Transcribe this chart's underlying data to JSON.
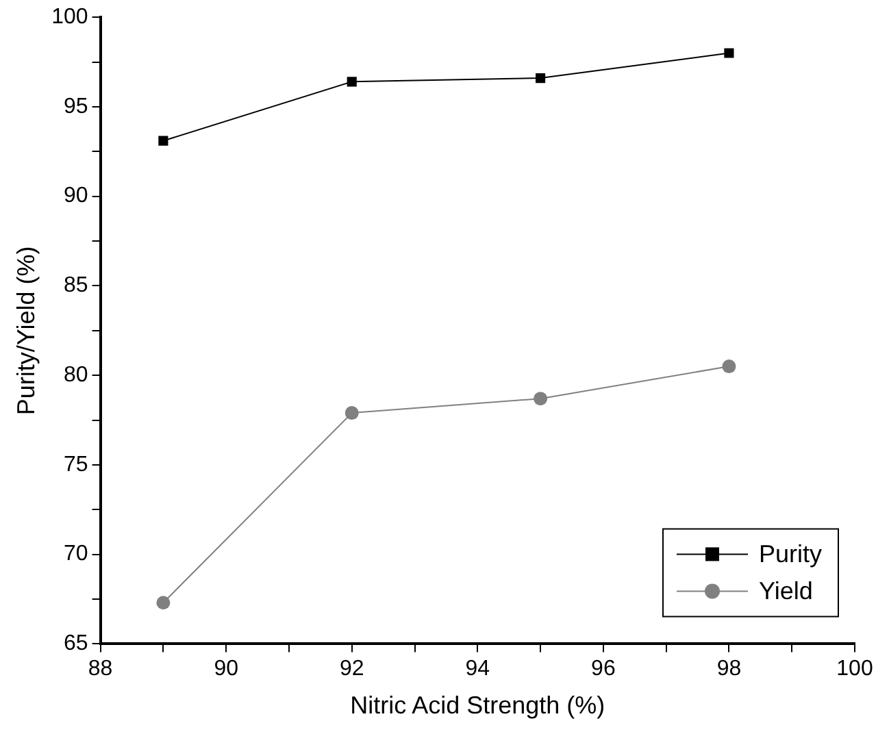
{
  "chart_data": {
    "type": "line",
    "xlabel": "Nitric Acid Strength (%)",
    "ylabel": "Purity/Yield (%)",
    "x": [
      89,
      92,
      95,
      98
    ],
    "series": [
      {
        "name": "Purity",
        "color": "#000000",
        "marker": "square",
        "values": [
          93.1,
          96.4,
          96.6,
          98.0
        ]
      },
      {
        "name": "Yield",
        "color": "#808080",
        "marker": "circle",
        "values": [
          67.3,
          77.9,
          78.7,
          80.5
        ]
      }
    ],
    "xlim": [
      88,
      100
    ],
    "xticks": [
      88,
      {
        "value": 89,
        "label": null
      },
      90,
      {
        "value": 91,
        "label": null
      },
      92,
      {
        "value": 93,
        "label": null
      },
      94,
      {
        "value": 95,
        "label": null
      },
      96,
      {
        "value": 97,
        "label": null
      },
      98,
      {
        "value": 99,
        "label": null
      },
      100
    ],
    "ylim": [
      65,
      100
    ],
    "yticks": [
      65,
      {
        "value": 67.5,
        "label": null
      },
      70,
      {
        "value": 72.5,
        "label": null
      },
      75,
      {
        "value": 77.5,
        "label": null
      },
      80,
      {
        "value": 82.5,
        "label": null
      },
      85,
      {
        "value": 87.5,
        "label": null
      },
      90,
      {
        "value": 92.5,
        "label": null
      },
      95,
      {
        "value": 97.5,
        "label": null
      },
      100
    ],
    "grid": false,
    "legend": "bottom right",
    "line_style": "solid"
  }
}
